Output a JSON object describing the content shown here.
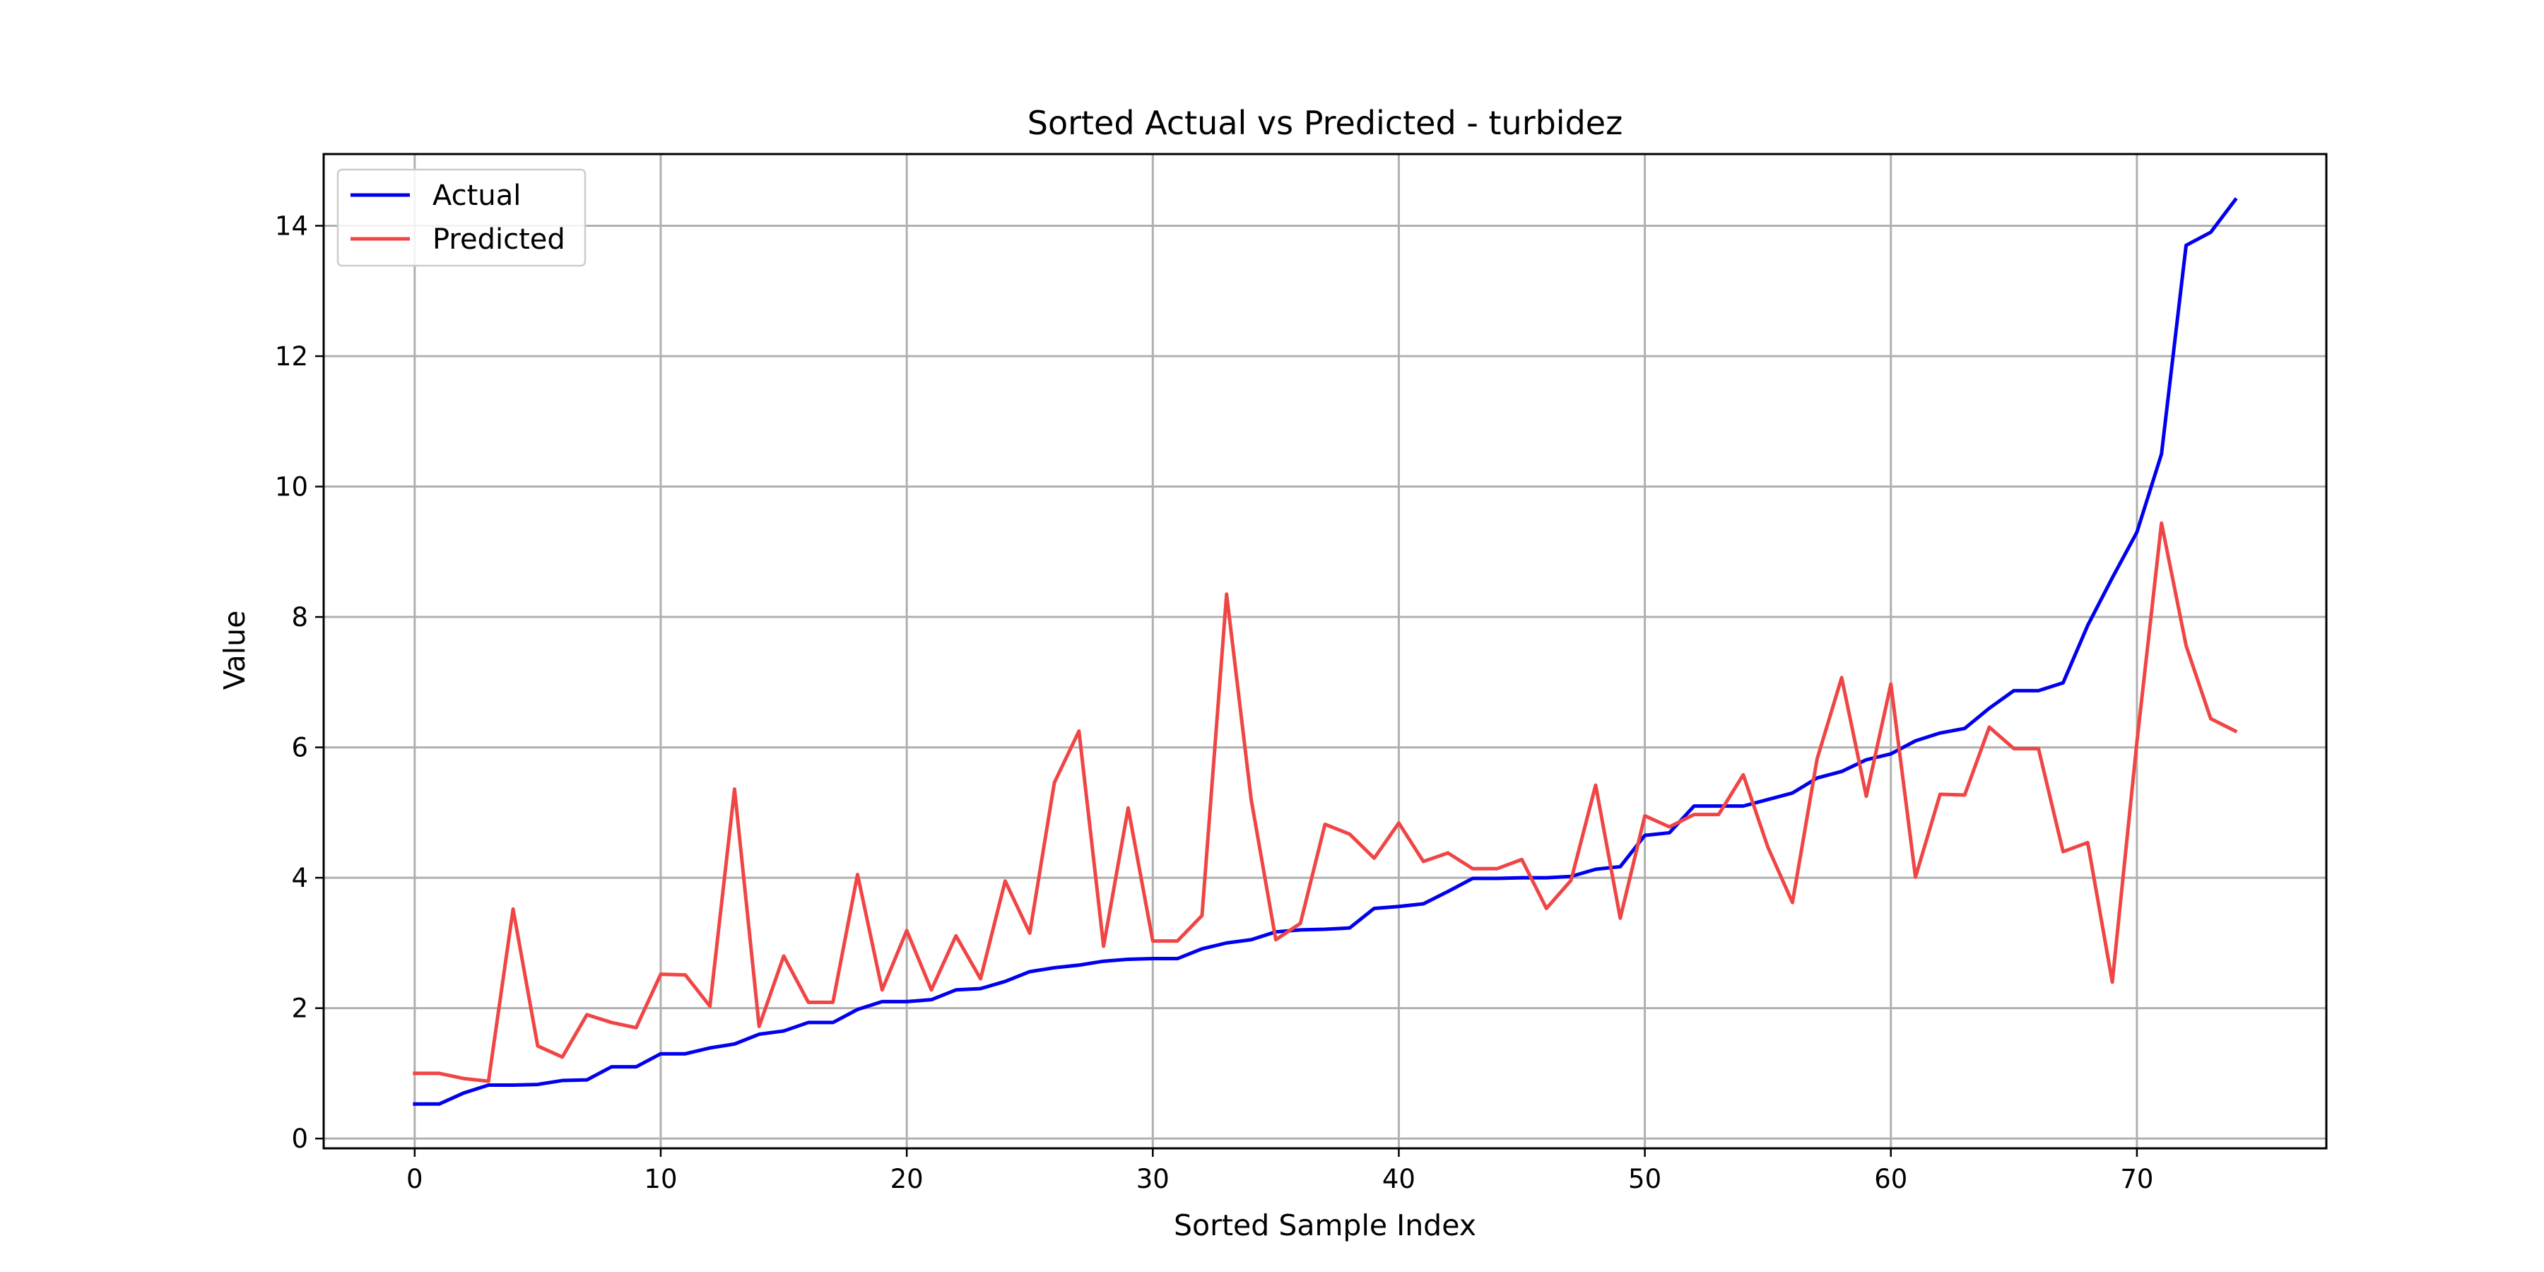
{
  "chart_data": {
    "type": "line",
    "title": "Sorted Actual vs Predicted - turbidez",
    "xlabel": "Sorted Sample Index",
    "ylabel": "Value",
    "xlim": [
      -3.7,
      77.7
    ],
    "ylim": [
      -0.15,
      15.1
    ],
    "x_ticks": [
      0,
      10,
      20,
      30,
      40,
      50,
      60,
      70
    ],
    "y_ticks": [
      0,
      2,
      4,
      6,
      8,
      10,
      12,
      14
    ],
    "grid": true,
    "legend_position": "upper-left",
    "series": [
      {
        "name": "Actual",
        "color": "#0000ee",
        "values": [
          0.53,
          0.53,
          0.7,
          0.82,
          0.82,
          0.83,
          0.89,
          0.9,
          1.1,
          1.1,
          1.3,
          1.3,
          1.39,
          1.45,
          1.6,
          1.65,
          1.78,
          1.78,
          1.98,
          2.1,
          2.1,
          2.13,
          2.28,
          2.3,
          2.41,
          2.56,
          2.62,
          2.66,
          2.72,
          2.75,
          2.76,
          2.76,
          2.91,
          3.0,
          3.05,
          3.17,
          3.2,
          3.21,
          3.23,
          3.53,
          3.56,
          3.6,
          3.79,
          3.99,
          3.99,
          4.0,
          4.0,
          4.02,
          4.13,
          4.17,
          4.65,
          4.69,
          5.1,
          5.1,
          5.1,
          5.2,
          5.3,
          5.53,
          5.63,
          5.81,
          5.9,
          6.1,
          6.22,
          6.29,
          6.6,
          6.87,
          6.87,
          6.99,
          7.87,
          8.6,
          9.3,
          10.5,
          13.7,
          13.9,
          14.4
        ]
      },
      {
        "name": "Predicted",
        "color": "#f04545",
        "values": [
          1.0,
          1.0,
          0.92,
          0.88,
          3.52,
          1.42,
          1.25,
          1.9,
          1.78,
          1.7,
          2.52,
          2.51,
          2.03,
          5.36,
          1.72,
          2.8,
          2.09,
          2.09,
          4.05,
          2.28,
          3.19,
          2.28,
          3.11,
          2.45,
          3.95,
          3.15,
          5.46,
          6.25,
          2.95,
          5.07,
          3.03,
          3.03,
          3.42,
          8.35,
          5.2,
          3.05,
          3.3,
          4.82,
          4.67,
          4.3,
          4.84,
          4.25,
          4.38,
          4.14,
          4.14,
          4.28,
          3.53,
          3.96,
          5.42,
          3.38,
          4.95,
          4.78,
          4.97,
          4.97,
          5.58,
          4.47,
          3.62,
          5.82,
          7.07,
          5.25,
          6.97,
          4.01,
          5.28,
          5.27,
          6.31,
          5.98,
          5.98,
          4.4,
          4.54,
          2.4,
          6.08,
          9.44,
          7.56,
          6.44,
          6.25
        ]
      }
    ]
  }
}
